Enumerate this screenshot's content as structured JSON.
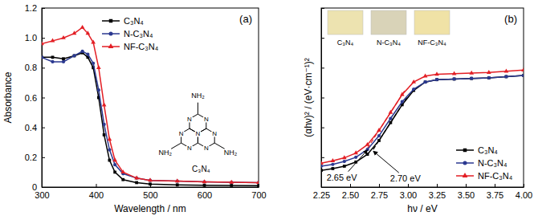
{
  "chart_data": [
    {
      "type": "line",
      "title": "(a)",
      "x_label": "Wavelength / nm",
      "y_label": "Absorbance",
      "x": [
        300,
        320,
        340,
        360,
        375,
        385,
        395,
        405,
        415,
        425,
        435,
        450,
        475,
        500,
        550,
        600,
        650,
        700
      ],
      "series": [
        {
          "name": "C₃N₄",
          "color": "#000000",
          "marker": "square",
          "values": [
            0.87,
            0.87,
            0.86,
            0.88,
            0.9,
            0.87,
            0.8,
            0.6,
            0.35,
            0.18,
            0.1,
            0.05,
            0.03,
            0.02,
            0.015,
            0.012,
            0.011,
            0.01
          ]
        },
        {
          "name": "N-C₃N₄",
          "color": "#2b3990",
          "marker": "circle",
          "values": [
            0.87,
            0.84,
            0.84,
            0.88,
            0.91,
            0.89,
            0.83,
            0.65,
            0.42,
            0.25,
            0.15,
            0.09,
            0.06,
            0.045,
            0.04,
            0.035,
            0.032,
            0.03
          ]
        },
        {
          "name": "NF-C₃N₄",
          "color": "#e31e24",
          "marker": "triangle",
          "values": [
            0.96,
            0.98,
            1.0,
            1.03,
            1.07,
            1.03,
            0.97,
            0.8,
            0.55,
            0.32,
            0.18,
            0.1,
            0.06,
            0.045,
            0.04,
            0.035,
            0.032,
            0.03
          ]
        }
      ],
      "xlim": [
        300,
        700
      ],
      "xticks": [
        300,
        400,
        500,
        600,
        700
      ],
      "ylim": [
        0,
        1.2
      ],
      "yticks": [
        0,
        0.2,
        0.4,
        0.6,
        0.8,
        {
          "value": 1,
          "label": "1.0"
        },
        1.2
      ],
      "legend": "upper center",
      "inset": {
        "atom": "N",
        "group": "NH₂",
        "label": "C₃N₄"
      }
    },
    {
      "type": "line",
      "title": "(b)",
      "x_label": "hν / eV",
      "y_label": "(αhν)² / (eV·cm⁻¹)²",
      "x": [
        2.25,
        2.35,
        2.45,
        2.55,
        2.65,
        2.75,
        2.85,
        2.95,
        3.05,
        3.15,
        3.25,
        3.4,
        3.55,
        3.7,
        3.85,
        4.0
      ],
      "series": [
        {
          "name": "C₃N₄",
          "color": "#000000",
          "marker": "square",
          "values": [
            0.28,
            0.31,
            0.35,
            0.42,
            0.55,
            0.78,
            1.08,
            1.38,
            1.62,
            1.76,
            1.8,
            1.81,
            1.82,
            1.83,
            1.85,
            1.87
          ]
        },
        {
          "name": "N-C₃N₄",
          "color": "#2b3990",
          "marker": "circle",
          "values": [
            0.35,
            0.38,
            0.43,
            0.5,
            0.63,
            0.86,
            1.15,
            1.43,
            1.64,
            1.76,
            1.8,
            1.81,
            1.82,
            1.83,
            1.85,
            1.87
          ]
        },
        {
          "name": "NF-C₃N₄",
          "color": "#e31e24",
          "marker": "triangle",
          "values": [
            0.4,
            0.44,
            0.49,
            0.57,
            0.71,
            0.95,
            1.25,
            1.55,
            1.76,
            1.86,
            1.89,
            1.9,
            1.91,
            1.92,
            1.94,
            1.96
          ]
        }
      ],
      "xlim": [
        2.25,
        4.0
      ],
      "xticks": [
        2.25,
        {
          "value": 2.5,
          "label": "2.50"
        },
        2.75,
        {
          "value": 3,
          "label": "3.00"
        },
        3.25,
        {
          "value": 3.5,
          "label": "3.50"
        },
        3.75,
        {
          "value": 4,
          "label": "4.00"
        }
      ],
      "ylim": [
        0,
        3
      ],
      "yticks": [
        0,
        0.5,
        1,
        1.5,
        2,
        2.5,
        3
      ],
      "tick_labels": "x",
      "legend": "lower right",
      "tangents": [
        {
          "color": "#e31e24",
          "line_style": "dashed",
          "x": [
            2.65,
            2.97
          ],
          "values": [
            0.65,
            1.61
          ]
        },
        {
          "color": "#000000",
          "line_style": "dashed",
          "x": [
            2.7,
            3.0
          ],
          "values": [
            0.63,
            1.53
          ]
        }
      ],
      "annotations": [
        {
          "text": "2.65 eV",
          "x": 2.65,
          "y": 0.65
        },
        {
          "text": "2.70 eV",
          "x": 2.7,
          "y": 0.63
        }
      ],
      "photos": [
        {
          "label": "C₃N₄",
          "color": "#ede3b0"
        },
        {
          "label": "N-C₃N₄",
          "color": "#d9d3b8"
        },
        {
          "label": "NF-C₃N₄",
          "color": "#f0e2a6"
        }
      ]
    }
  ]
}
